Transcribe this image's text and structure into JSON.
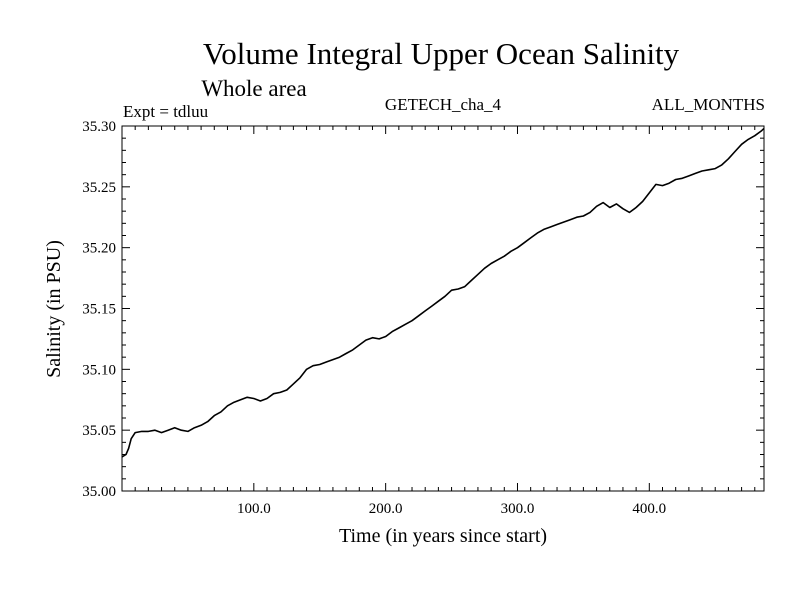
{
  "chart_data": {
    "type": "line",
    "title": "Volume Integral Upper Ocean Salinity",
    "subtitle": "Whole area",
    "annotations": {
      "left": "Expt = tdluu",
      "center": "GETECH_cha_4",
      "right": "ALL_MONTHS"
    },
    "xlabel": "Time (in years since start)",
    "ylabel": "Salinity (in PSU)",
    "xlim": [
      0,
      487
    ],
    "ylim": [
      35.0,
      35.3
    ],
    "x_ticks": [
      100,
      200,
      300,
      400
    ],
    "x_tick_labels": [
      "100.0",
      "200.0",
      "300.0",
      "400.0"
    ],
    "y_ticks": [
      35.0,
      35.05,
      35.1,
      35.15,
      35.2,
      35.25,
      35.3
    ],
    "y_tick_labels": [
      "35.00",
      "35.05",
      "35.10",
      "35.15",
      "35.20",
      "35.25",
      "35.30"
    ],
    "grid": false,
    "series": [
      {
        "points": [
          [
            0,
            35.028
          ],
          [
            3,
            35.03
          ],
          [
            5,
            35.035
          ],
          [
            7,
            35.043
          ],
          [
            10,
            35.048
          ],
          [
            15,
            35.049
          ],
          [
            20,
            35.049
          ],
          [
            25,
            35.05
          ],
          [
            30,
            35.048
          ],
          [
            35,
            35.05
          ],
          [
            40,
            35.052
          ],
          [
            45,
            35.05
          ],
          [
            50,
            35.049
          ],
          [
            55,
            35.052
          ],
          [
            60,
            35.054
          ],
          [
            65,
            35.057
          ],
          [
            70,
            35.062
          ],
          [
            75,
            35.065
          ],
          [
            80,
            35.07
          ],
          [
            85,
            35.073
          ],
          [
            90,
            35.075
          ],
          [
            95,
            35.077
          ],
          [
            100,
            35.076
          ],
          [
            105,
            35.074
          ],
          [
            110,
            35.076
          ],
          [
            115,
            35.08
          ],
          [
            120,
            35.081
          ],
          [
            125,
            35.083
          ],
          [
            130,
            35.088
          ],
          [
            135,
            35.093
          ],
          [
            140,
            35.1
          ],
          [
            145,
            35.103
          ],
          [
            150,
            35.104
          ],
          [
            155,
            35.106
          ],
          [
            160,
            35.108
          ],
          [
            165,
            35.11
          ],
          [
            170,
            35.113
          ],
          [
            175,
            35.116
          ],
          [
            180,
            35.12
          ],
          [
            185,
            35.124
          ],
          [
            190,
            35.126
          ],
          [
            195,
            35.125
          ],
          [
            200,
            35.127
          ],
          [
            205,
            35.131
          ],
          [
            210,
            35.134
          ],
          [
            215,
            35.137
          ],
          [
            220,
            35.14
          ],
          [
            225,
            35.144
          ],
          [
            230,
            35.148
          ],
          [
            235,
            35.152
          ],
          [
            240,
            35.156
          ],
          [
            245,
            35.16
          ],
          [
            250,
            35.165
          ],
          [
            255,
            35.166
          ],
          [
            260,
            35.168
          ],
          [
            265,
            35.173
          ],
          [
            270,
            35.178
          ],
          [
            275,
            35.183
          ],
          [
            280,
            35.187
          ],
          [
            285,
            35.19
          ],
          [
            290,
            35.193
          ],
          [
            295,
            35.197
          ],
          [
            300,
            35.2
          ],
          [
            305,
            35.204
          ],
          [
            310,
            35.208
          ],
          [
            315,
            35.212
          ],
          [
            320,
            35.215
          ],
          [
            325,
            35.217
          ],
          [
            330,
            35.219
          ],
          [
            335,
            35.221
          ],
          [
            340,
            35.223
          ],
          [
            345,
            35.225
          ],
          [
            350,
            35.226
          ],
          [
            355,
            35.229
          ],
          [
            360,
            35.234
          ],
          [
            365,
            35.237
          ],
          [
            370,
            35.233
          ],
          [
            375,
            35.236
          ],
          [
            380,
            35.232
          ],
          [
            385,
            35.229
          ],
          [
            390,
            35.233
          ],
          [
            395,
            35.238
          ],
          [
            400,
            35.245
          ],
          [
            405,
            35.252
          ],
          [
            410,
            35.251
          ],
          [
            415,
            35.253
          ],
          [
            420,
            35.256
          ],
          [
            425,
            35.257
          ],
          [
            430,
            35.259
          ],
          [
            435,
            35.261
          ],
          [
            440,
            35.263
          ],
          [
            445,
            35.264
          ],
          [
            450,
            35.265
          ],
          [
            455,
            35.268
          ],
          [
            460,
            35.273
          ],
          [
            465,
            35.279
          ],
          [
            470,
            35.285
          ],
          [
            475,
            35.289
          ],
          [
            480,
            35.292
          ],
          [
            485,
            35.296
          ],
          [
            487,
            35.298
          ]
        ]
      }
    ]
  }
}
